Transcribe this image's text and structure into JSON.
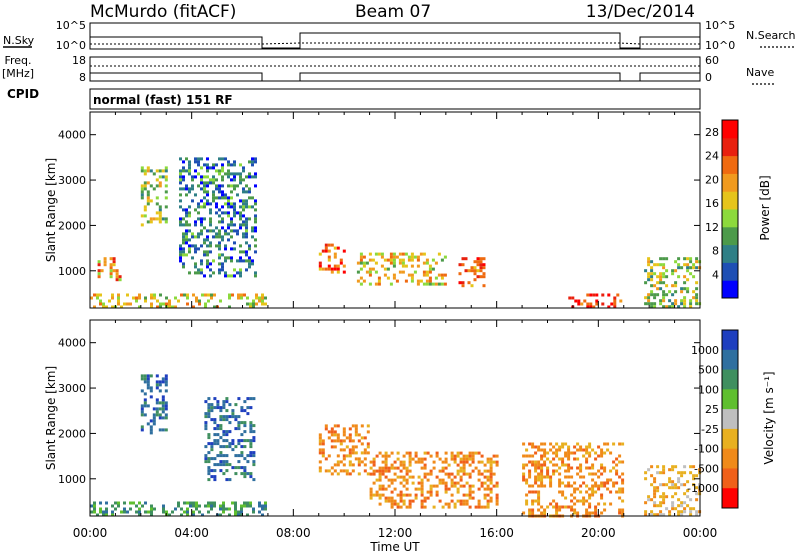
{
  "header": {
    "station": "McMurdo (fitACF)",
    "beam": "Beam 07",
    "date": "13/Dec/2014"
  },
  "panels": {
    "nsky_label": "N.Sky",
    "nsky_ticks": [
      "10^5",
      "10^0"
    ],
    "nsearch_label": "N.Search",
    "nsearch_ticks": [
      "10^5",
      "10^0"
    ],
    "freq_label_1": "Freq.",
    "freq_label_2": "[MHz]",
    "freq_ticks": [
      "18",
      "8"
    ],
    "nave_label": "Nave",
    "nave_ticks": [
      "60",
      "0"
    ],
    "cpid_label": "CPID",
    "cpid_value": "normal (fast) 151 RF"
  },
  "x_axis": {
    "label": "Time UT",
    "ticks": [
      "00:00",
      "04:00",
      "08:00",
      "12:00",
      "16:00",
      "20:00",
      "00:00"
    ]
  },
  "chart_data": [
    {
      "type": "heatmap",
      "name": "power",
      "ylabel": "Slant Range [km]",
      "yticks": [
        "1000",
        "2000",
        "3000",
        "4000"
      ],
      "ylim": [
        180,
        4500
      ],
      "xlim_hours": [
        0,
        24
      ],
      "colorbar_label": "Power [dB]",
      "colorbar_ticks": [
        "4",
        "8",
        "12",
        "16",
        "20",
        "24",
        "28"
      ],
      "colorbar_range": [
        0,
        30
      ],
      "colors": [
        "#0000ff",
        "#1e4fb4",
        "#2f7f86",
        "#4c9a4a",
        "#8cd93c",
        "#e6c41a",
        "#f19a1e",
        "#ef6a10",
        "#e8200e",
        "#ff0000"
      ],
      "data_gaps_hours": [
        [
          6.9,
          8.3
        ],
        [
          21.0,
          21.8
        ]
      ],
      "echo_regions": [
        {
          "t": [
            0.0,
            6.9
          ],
          "r": [
            180,
            500
          ],
          "level": 16
        },
        {
          "t": [
            0.3,
            1.2
          ],
          "r": [
            800,
            1300
          ],
          "level": 20
        },
        {
          "t": [
            2.0,
            3.0
          ],
          "r": [
            2000,
            3300
          ],
          "level": 12
        },
        {
          "t": [
            3.5,
            6.5
          ],
          "r": [
            900,
            3500
          ],
          "level": 8
        },
        {
          "t": [
            9.0,
            10.0
          ],
          "r": [
            1000,
            1600
          ],
          "level": 24
        },
        {
          "t": [
            10.5,
            14.0
          ],
          "r": [
            700,
            1400
          ],
          "level": 16
        },
        {
          "t": [
            14.5,
            15.5
          ],
          "r": [
            700,
            1300
          ],
          "level": 24
        },
        {
          "t": [
            18.7,
            20.9
          ],
          "r": [
            200,
            500
          ],
          "level": 28
        },
        {
          "t": [
            21.8,
            24.0
          ],
          "r": [
            200,
            1300
          ],
          "level": 12
        }
      ]
    },
    {
      "type": "heatmap",
      "name": "velocity",
      "ylabel": "Slant Range [km]",
      "yticks": [
        "1000",
        "2000",
        "3000",
        "4000"
      ],
      "ylim": [
        180,
        4500
      ],
      "xlim_hours": [
        0,
        24
      ],
      "colorbar_label": "Velocity [m s⁻¹]",
      "colorbar_ticks": [
        "1000",
        "500",
        "100",
        "25",
        "-25",
        "-100",
        "-500",
        "-1000"
      ],
      "colors": [
        "#1f3fbf",
        "#2f6f9f",
        "#3f8f5f",
        "#5fbf2f",
        "#bfbfbf",
        "#e8b020",
        "#f08a1a",
        "#f0601a",
        "#ff0000"
      ],
      "data_gaps_hours": [
        [
          6.9,
          8.3
        ],
        [
          21.0,
          21.8
        ]
      ],
      "echo_regions": [
        {
          "t": [
            0.0,
            6.9
          ],
          "r": [
            180,
            500
          ],
          "v": 100
        },
        {
          "t": [
            2.0,
            3.0
          ],
          "r": [
            2000,
            3300
          ],
          "v": 500
        },
        {
          "t": [
            4.5,
            6.5
          ],
          "r": [
            1000,
            2800
          ],
          "v": 500
        },
        {
          "t": [
            9.0,
            11.0
          ],
          "r": [
            1100,
            2200
          ],
          "v": -500
        },
        {
          "t": [
            11.0,
            16.0
          ],
          "r": [
            400,
            1600
          ],
          "v": -500
        },
        {
          "t": [
            17.0,
            20.9
          ],
          "r": [
            200,
            1800
          ],
          "v": -500
        },
        {
          "t": [
            21.8,
            24.0
          ],
          "r": [
            200,
            1300
          ],
          "v": -100
        }
      ]
    }
  ]
}
